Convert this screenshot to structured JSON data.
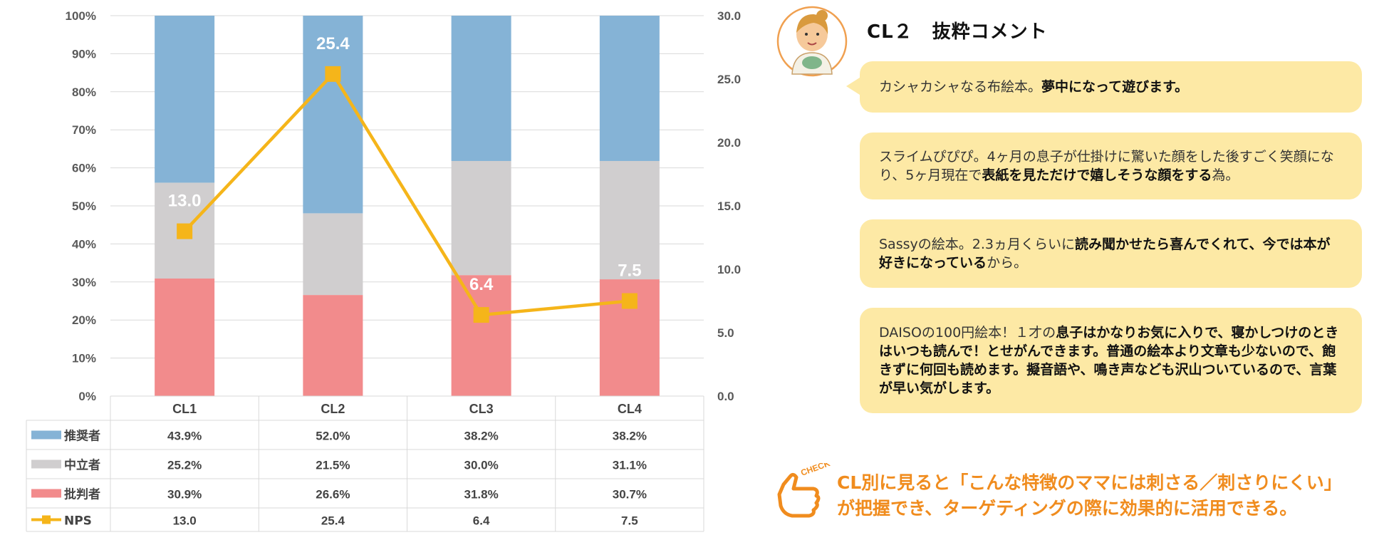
{
  "chart_data": {
    "type": "bar",
    "stacked": true,
    "categories": [
      "CL1",
      "CL2",
      "CL3",
      "CL4"
    ],
    "series": [
      {
        "name": "批判者",
        "color": "#f28b8c",
        "values": [
          30.9,
          26.6,
          31.8,
          30.7
        ],
        "labels": [
          "30.9%",
          "26.6%",
          "31.8%",
          "30.7%"
        ]
      },
      {
        "name": "中立者",
        "color": "#d0cecf",
        "values": [
          25.2,
          21.5,
          30.0,
          31.1
        ],
        "labels": [
          "25.2%",
          "21.5%",
          "30.0%",
          "31.1%"
        ]
      },
      {
        "name": "推奨者",
        "color": "#85b3d6",
        "values": [
          43.9,
          52.0,
          38.2,
          38.2
        ],
        "labels": [
          "43.9%",
          "52.0%",
          "38.2%",
          "38.2%"
        ]
      }
    ],
    "line_series": {
      "name": "NPS",
      "color": "#f5b51a",
      "axis": "right",
      "values": [
        13.0,
        25.4,
        6.4,
        7.5
      ],
      "labels": [
        "13.0",
        "25.4",
        "6.4",
        "7.5"
      ]
    },
    "y_left": {
      "ticks": [
        "0%",
        "10%",
        "20%",
        "30%",
        "40%",
        "50%",
        "60%",
        "70%",
        "80%",
        "90%",
        "100%"
      ],
      "ylim": [
        0,
        100
      ]
    },
    "y_right": {
      "ticks": [
        "0.0",
        "5.0",
        "10.0",
        "15.0",
        "20.0",
        "25.0",
        "30.0"
      ],
      "ylim": [
        0,
        30
      ]
    },
    "table_rows": [
      "推奨者",
      "中立者",
      "批判者",
      "NPS"
    ],
    "grid": true
  },
  "comments": {
    "title": "CL２　抜粋コメント",
    "items": [
      {
        "plain_1": "カシャカシャなる布絵本。",
        "bold_1": "夢中になって遊びます。",
        "plain_2": ""
      },
      {
        "plain_1": "スライムぴぴぴ。4ヶ月の息子が仕掛けに驚いた顔をした後すごく笑顔になり、5ヶ月現在で",
        "bold_1": "表紙を見ただけで嬉しそうな顔をする",
        "plain_2": "為。"
      },
      {
        "plain_1": "Sassyの絵本。2.3ヵ月くらいに",
        "bold_1": "読み聞かせたら喜んでくれて、今では本が好きになっている",
        "plain_2": "から。"
      },
      {
        "plain_1": "DAISOの100円絵本！１才の",
        "bold_1": "息子はかなりお気に入りで、寝かしつけのときはいつも読んで！とせがんできます。普通の絵本より文章も少ないので、飽きずに何回も読めます。擬音語や、鳴き声なども沢山ついているので、言葉が早い気がします。",
        "plain_2": ""
      }
    ]
  },
  "conclusion": {
    "line_1": "CL別に見ると「こんな特徴のママには刺さる／刺さりにくい」",
    "line_2": "が把握でき、ターゲティングの際に効果的に活用できる。"
  },
  "icons": {
    "avatar": "mother-avatar-icon",
    "check": "check-hand-icon"
  },
  "check_label": "CHECK"
}
